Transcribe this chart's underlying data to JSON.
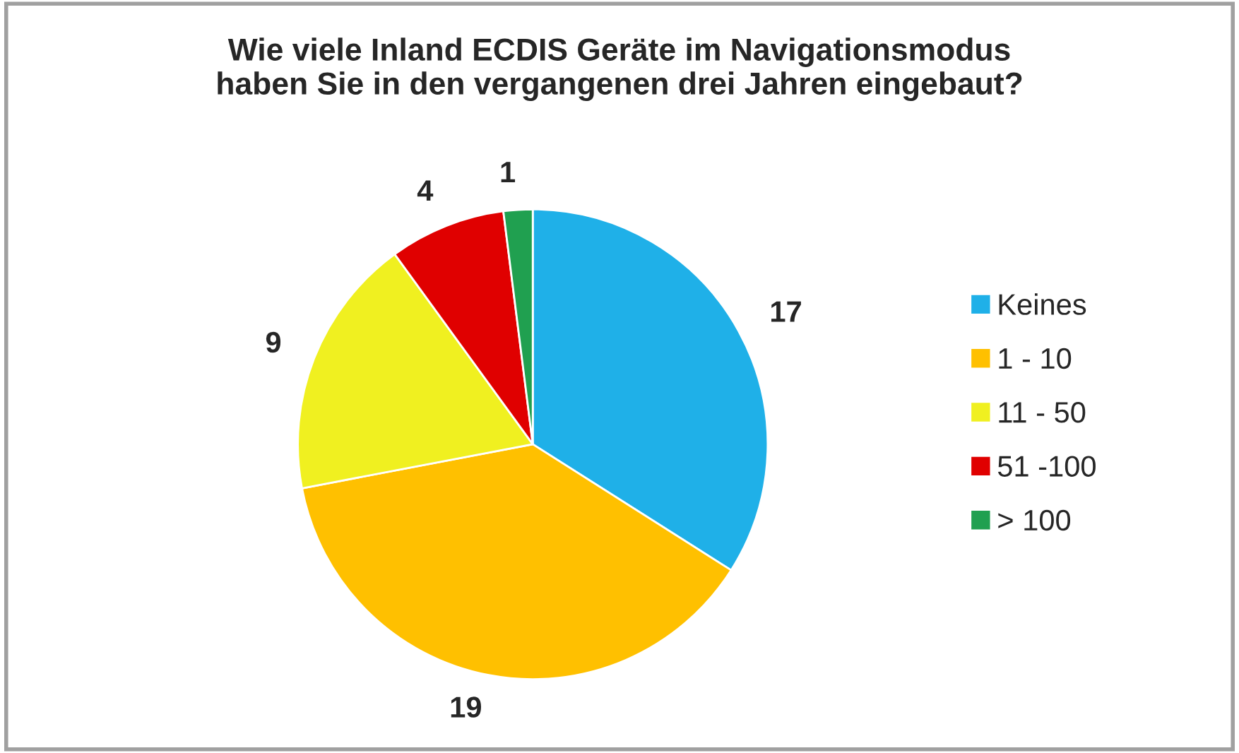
{
  "chart_data": {
    "type": "pie",
    "title": "Wie viele Inland ECDIS Geräte im Navigationsmodus\nhaben Sie in den vergangenen drei Jahren eingebaut?",
    "categories": [
      "Keines",
      "1 - 10",
      "11 - 50",
      "51 -100",
      "> 100"
    ],
    "values": [
      17,
      19,
      9,
      4,
      1
    ],
    "colors": [
      "#1fb0e8",
      "#ffc000",
      "#f0f020",
      "#e00000",
      "#20a050"
    ],
    "data_labels": true,
    "legend": "right"
  }
}
